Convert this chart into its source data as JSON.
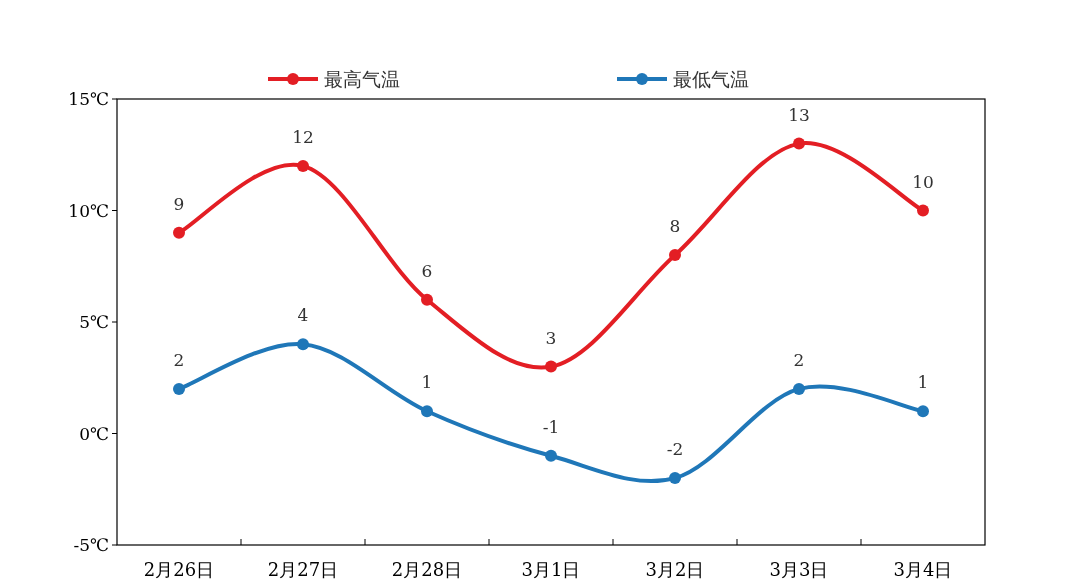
{
  "chart_data": {
    "type": "line",
    "categories": [
      "2月26日",
      "2月27日",
      "2月28日",
      "3月1日",
      "3月2日",
      "3月3日",
      "3月4日"
    ],
    "series": [
      {
        "name": "最高气温",
        "color": "#e31e24",
        "values": [
          9,
          12,
          6,
          3,
          8,
          13,
          10
        ]
      },
      {
        "name": "最低气温",
        "color": "#1f77b8",
        "values": [
          2,
          4,
          1,
          -1,
          -2,
          2,
          1
        ]
      }
    ],
    "ylim": [
      -5,
      15
    ],
    "yticks": [
      {
        "value": -5,
        "label": "-5℃"
      },
      {
        "value": 0,
        "label": "0℃"
      },
      {
        "value": 5,
        "label": "5℃"
      },
      {
        "value": 10,
        "label": "10℃"
      },
      {
        "value": 15,
        "label": "15℃"
      }
    ],
    "marker": "circle",
    "data_labels": true,
    "legend": "top"
  }
}
